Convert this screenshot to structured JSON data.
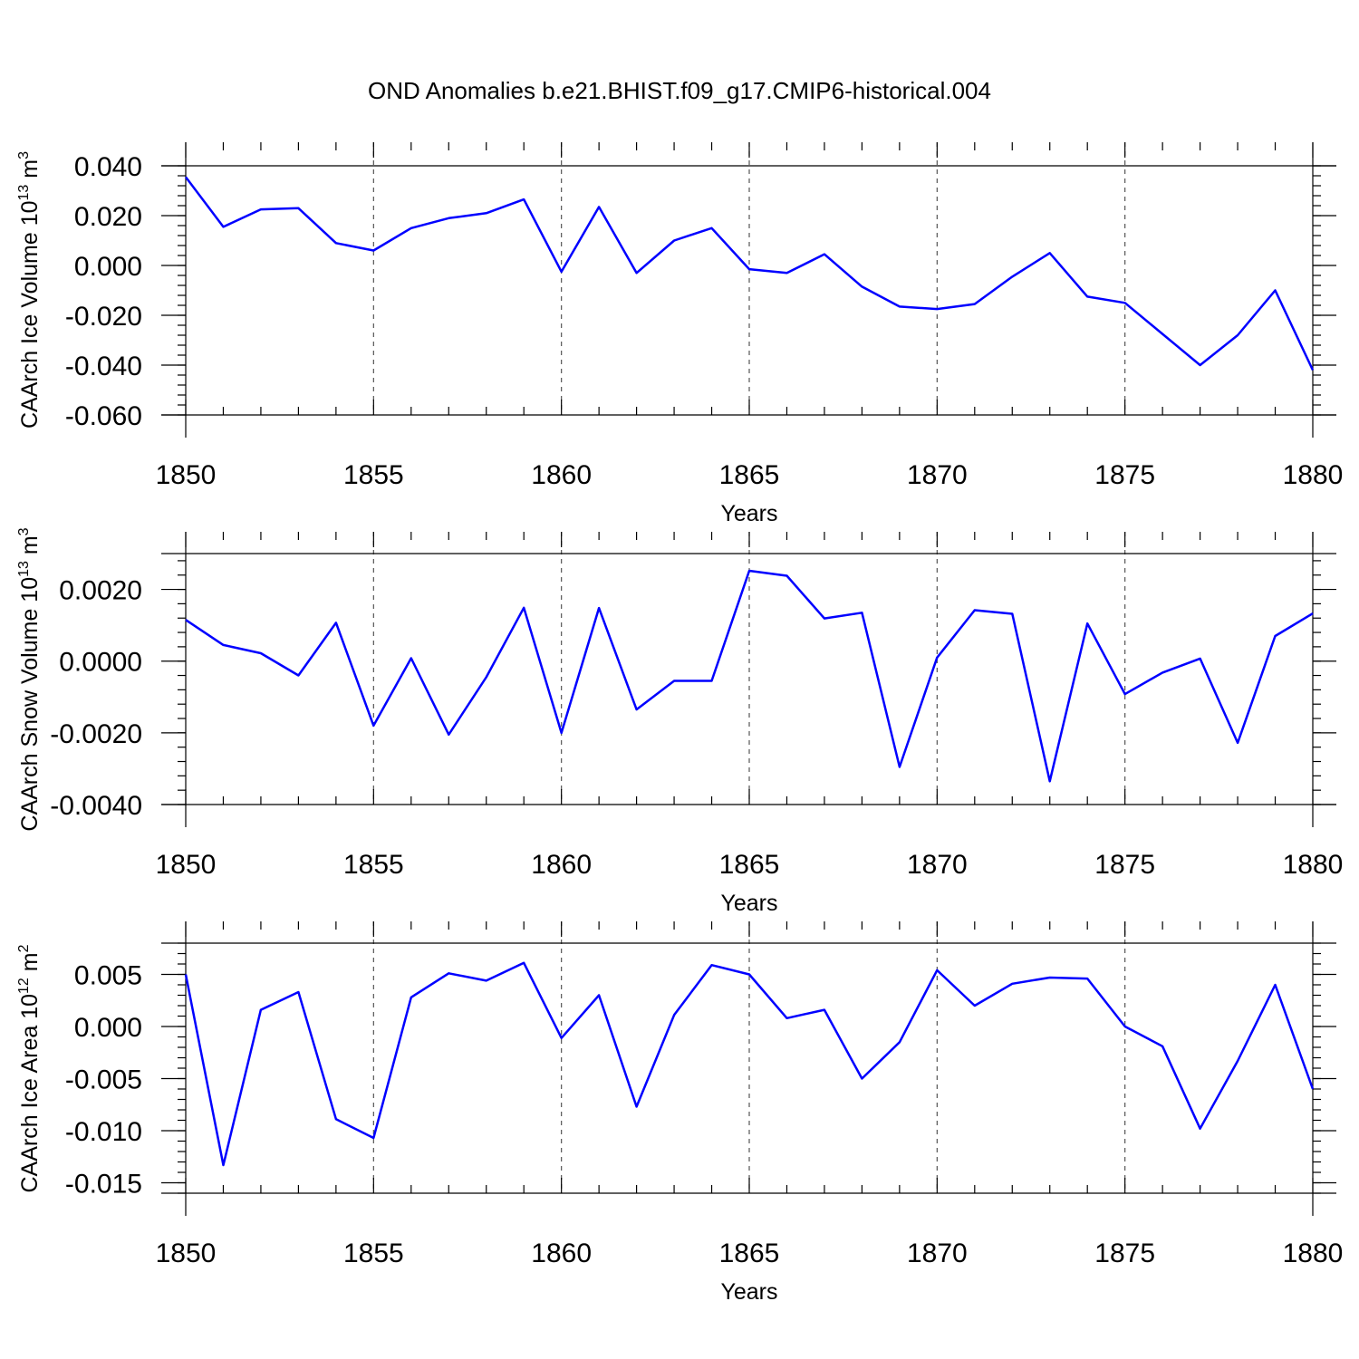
{
  "title": "OND Anomalies b.e21.BHIST.f09_g17.CMIP6-historical.004",
  "colors": {
    "line": "#0000ff",
    "axis": "#000000",
    "grid": "#555555"
  },
  "chart_data": [
    {
      "type": "line",
      "ylabel": "CAArch Ice Volume 10",
      "ylabel_exponent": "13",
      "ylabel_unit": "m",
      "ylabel_unit_exponent": "3",
      "xlabel": "Years",
      "xlim": [
        1850,
        1880
      ],
      "ylim": [
        -0.06,
        0.04
      ],
      "x_ticks": [
        "1850",
        "1855",
        "1860",
        "1865",
        "1870",
        "1875",
        "1880"
      ],
      "y_ticks": [
        {
          "value": 0.04,
          "label": "0.040"
        },
        {
          "value": 0.02,
          "label": "0.020"
        },
        {
          "value": 0.0,
          "label": "0.000"
        },
        {
          "value": -0.02,
          "label": "-0.020"
        },
        {
          "value": -0.04,
          "label": "-0.040"
        },
        {
          "value": -0.06,
          "label": "-0.060"
        }
      ],
      "y_minor_step": 0.004,
      "grid_x": true,
      "x": [
        1850,
        1851,
        1852,
        1853,
        1854,
        1855,
        1856,
        1857,
        1858,
        1859,
        1860,
        1861,
        1862,
        1863,
        1864,
        1865,
        1866,
        1867,
        1868,
        1869,
        1870,
        1871,
        1872,
        1873,
        1874,
        1875,
        1876,
        1877,
        1878,
        1879,
        1880
      ],
      "values": [
        0.0355,
        0.0155,
        0.0225,
        0.023,
        0.009,
        0.006,
        0.015,
        0.019,
        0.021,
        0.0265,
        -0.0025,
        0.0235,
        -0.003,
        0.01,
        0.015,
        -0.0015,
        -0.003,
        0.0045,
        -0.0085,
        -0.0165,
        -0.0175,
        -0.0155,
        -0.0045,
        0.005,
        -0.0125,
        -0.015,
        -0.0275,
        -0.04,
        -0.028,
        -0.01,
        -0.042
      ]
    },
    {
      "type": "line",
      "ylabel": "CAArch Snow Volume 10",
      "ylabel_exponent": "13",
      "ylabel_unit": "m",
      "ylabel_unit_exponent": "3",
      "xlabel": "Years",
      "xlim": [
        1850,
        1880
      ],
      "ylim": [
        -0.004,
        0.003
      ],
      "x_ticks": [
        "1850",
        "1855",
        "1860",
        "1865",
        "1870",
        "1875",
        "1880"
      ],
      "y_ticks": [
        {
          "value": 0.002,
          "label": "0.0020"
        },
        {
          "value": 0.0,
          "label": "0.0000"
        },
        {
          "value": -0.002,
          "label": "-0.0020"
        },
        {
          "value": -0.004,
          "label": "-0.0040"
        }
      ],
      "y_minor_step": 0.0004,
      "grid_x": true,
      "x": [
        1850,
        1851,
        1852,
        1853,
        1854,
        1855,
        1856,
        1857,
        1858,
        1859,
        1860,
        1861,
        1862,
        1863,
        1864,
        1865,
        1866,
        1867,
        1868,
        1869,
        1870,
        1871,
        1872,
        1873,
        1874,
        1875,
        1876,
        1877,
        1878,
        1879,
        1880
      ],
      "values": [
        0.00115,
        0.00045,
        0.00022,
        -0.0004,
        0.00107,
        -0.0018,
        8e-05,
        -0.00205,
        -0.00045,
        0.00149,
        -0.002,
        0.00148,
        -0.00135,
        -0.00055,
        -0.00055,
        0.00252,
        0.00238,
        0.00119,
        0.00135,
        -0.00295,
        0.0001,
        0.00142,
        0.00132,
        -0.00335,
        0.00105,
        -0.00092,
        -0.00032,
        7e-05,
        -0.00228,
        0.0007,
        0.00133
      ]
    },
    {
      "type": "line",
      "ylabel": "CAArch Ice Area 10",
      "ylabel_exponent": "12",
      "ylabel_unit": "m",
      "ylabel_unit_exponent": "2",
      "xlabel": "Years",
      "xlim": [
        1850,
        1880
      ],
      "ylim": [
        -0.016,
        0.008
      ],
      "x_ticks": [
        "1850",
        "1855",
        "1860",
        "1865",
        "1870",
        "1875",
        "1880"
      ],
      "y_ticks": [
        {
          "value": 0.005,
          "label": "0.005"
        },
        {
          "value": 0.0,
          "label": "0.000"
        },
        {
          "value": -0.005,
          "label": "-0.005"
        },
        {
          "value": -0.01,
          "label": "-0.010"
        },
        {
          "value": -0.015,
          "label": "-0.015"
        }
      ],
      "y_minor_step": 0.001,
      "grid_x": true,
      "x": [
        1850,
        1851,
        1852,
        1853,
        1854,
        1855,
        1856,
        1857,
        1858,
        1859,
        1860,
        1861,
        1862,
        1863,
        1864,
        1865,
        1866,
        1867,
        1868,
        1869,
        1870,
        1871,
        1872,
        1873,
        1874,
        1875,
        1876,
        1877,
        1878,
        1879,
        1880
      ],
      "values": [
        0.005,
        -0.0133,
        0.0016,
        0.0033,
        -0.0089,
        -0.0107,
        0.0028,
        0.0051,
        0.0044,
        0.0061,
        -0.0011,
        0.003,
        -0.0077,
        0.0011,
        0.0059,
        0.005,
        0.0008,
        0.0016,
        -0.005,
        -0.0015,
        0.0054,
        0.002,
        0.0041,
        0.0047,
        0.0046,
        0.0,
        -0.0019,
        -0.0098,
        -0.0033,
        0.004,
        -0.006
      ]
    }
  ]
}
